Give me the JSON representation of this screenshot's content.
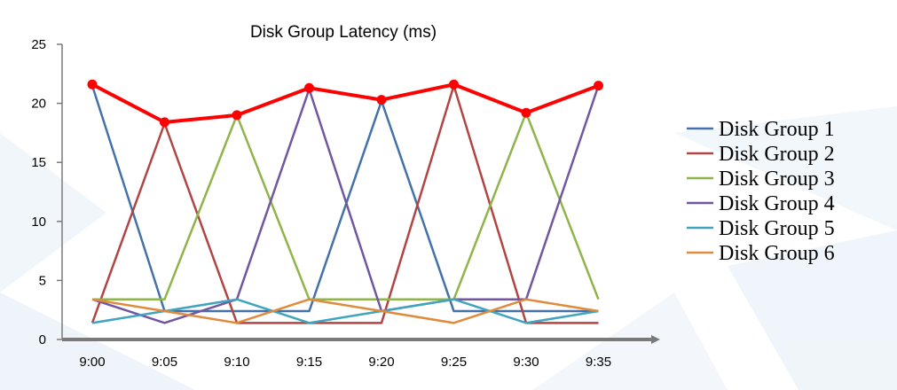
{
  "chart_data": {
    "type": "line",
    "title": "Disk Group Latency (ms)",
    "xlabel": "",
    "ylabel": "",
    "categories": [
      "9:00",
      "9:05",
      "9:10",
      "9:15",
      "9:20",
      "9:25",
      "9:30",
      "9:35"
    ],
    "ylim": [
      0,
      25
    ],
    "yticks": [
      0,
      5,
      10,
      15,
      20,
      25
    ],
    "grid": false,
    "legend_position": "right",
    "series": [
      {
        "name": "Disk Group 1",
        "color": "#4472A8",
        "values": [
          21.5,
          2.4,
          2.4,
          2.4,
          20.2,
          2.4,
          2.4,
          2.4
        ]
      },
      {
        "name": "Disk Group 2",
        "color": "#B04543",
        "values": [
          1.4,
          18.3,
          1.4,
          1.4,
          1.4,
          21.5,
          1.4,
          1.4
        ]
      },
      {
        "name": "Disk Group 3",
        "color": "#8EB44A",
        "values": [
          3.4,
          3.4,
          19.0,
          3.4,
          3.4,
          3.4,
          19.2,
          3.4
        ]
      },
      {
        "name": "Disk Group 4",
        "color": "#7156A0",
        "values": [
          3.4,
          1.4,
          3.4,
          21.2,
          2.4,
          3.4,
          3.4,
          21.5
        ]
      },
      {
        "name": "Disk Group 5",
        "color": "#3FA4BC",
        "values": [
          1.4,
          2.4,
          3.4,
          1.4,
          2.4,
          3.4,
          1.4,
          2.4
        ]
      },
      {
        "name": "Disk Group 6",
        "color": "#E08A3C",
        "values": [
          3.4,
          2.4,
          1.4,
          3.4,
          2.4,
          1.4,
          3.4,
          2.4
        ]
      }
    ],
    "max_line": {
      "color": "#FF0000",
      "values": [
        21.6,
        18.4,
        19.0,
        21.3,
        20.3,
        21.6,
        19.2,
        21.5
      ]
    }
  }
}
